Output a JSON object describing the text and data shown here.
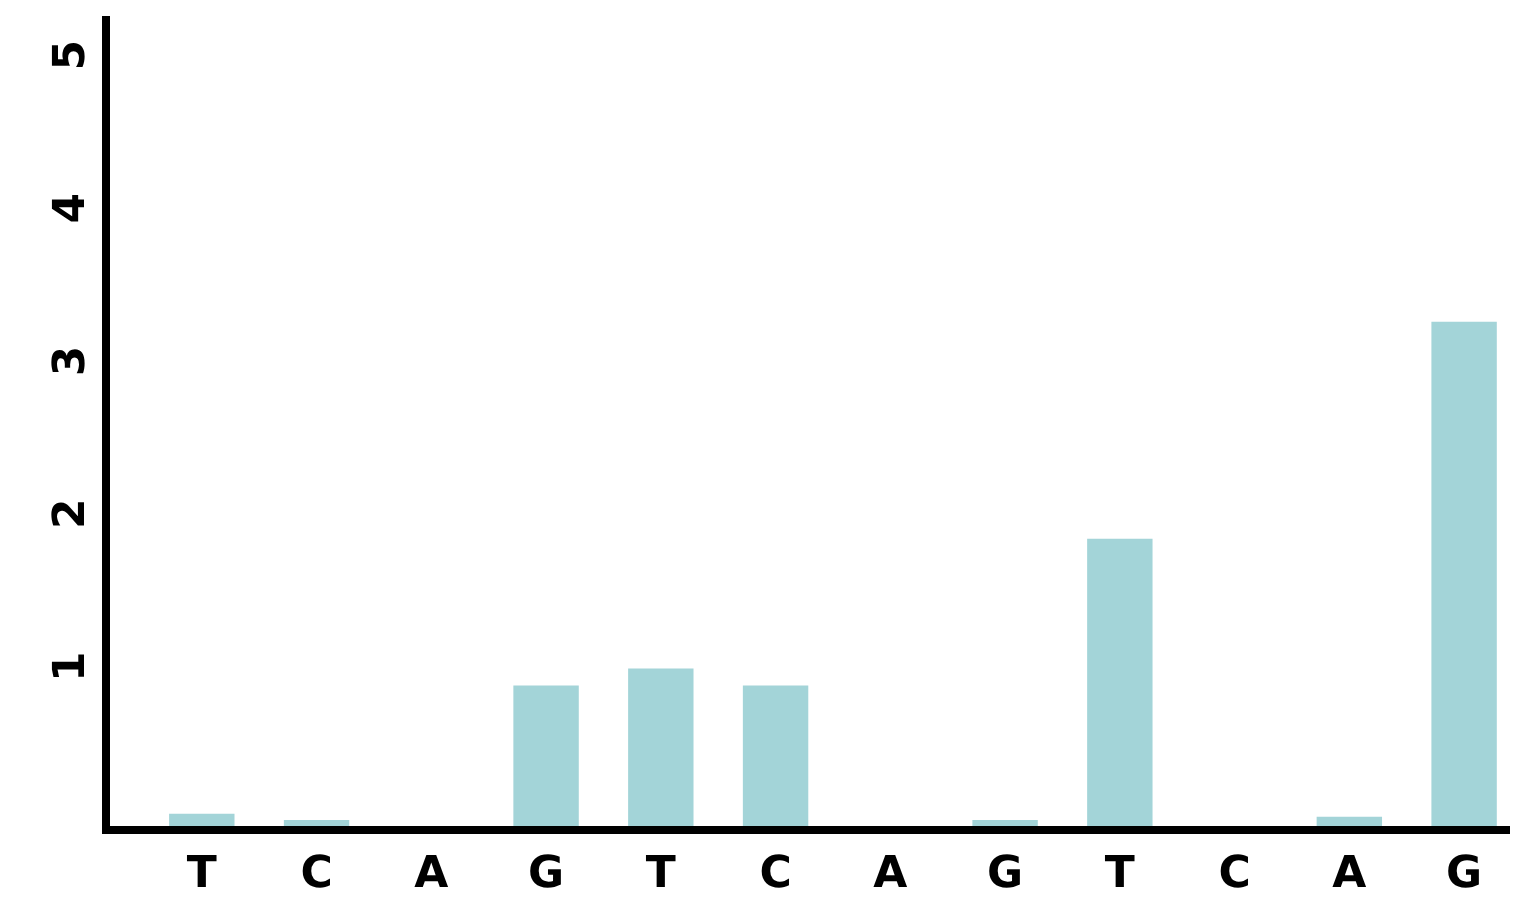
{
  "chart_data": {
    "type": "bar",
    "categories": [
      "T",
      "C",
      "A",
      "G",
      "T",
      "C",
      "A",
      "G",
      "T",
      "C",
      "A",
      "G"
    ],
    "values": [
      0.08,
      0.04,
      0,
      0.92,
      1.03,
      0.92,
      0,
      0.04,
      1.88,
      0,
      0.06,
      3.3
    ],
    "color": "#a3d4d8",
    "ylim": [
      0,
      5.3
    ],
    "yticks": [
      1,
      2,
      3,
      4,
      5
    ]
  }
}
